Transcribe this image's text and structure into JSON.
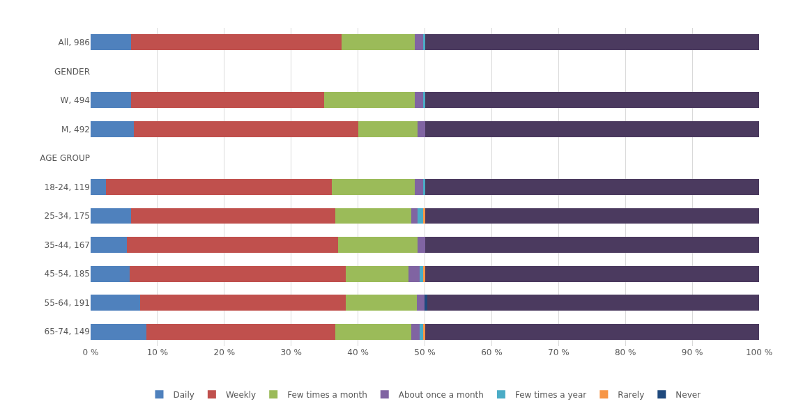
{
  "chart_data": {
    "type": "bar",
    "orientation": "horizontal",
    "stacked": true,
    "categories": [
      "All, 986",
      "GENDER",
      "W, 494",
      "M, 492",
      "AGE GROUP",
      "18-24, 119",
      "25-34, 175",
      "35-44, 167",
      "45-54, 185",
      "55-64, 191",
      "65-74, 149"
    ],
    "series": [
      {
        "name": "Daily",
        "color": "#4f81bd",
        "values": [
          6.0,
          null,
          6.0,
          6.5,
          null,
          2.3,
          6.0,
          5.4,
          5.8,
          7.4,
          8.3
        ]
      },
      {
        "name": "Weekly",
        "color": "#c0504d",
        "values": [
          31.5,
          null,
          28.9,
          33.5,
          null,
          33.8,
          30.6,
          31.6,
          32.4,
          30.8,
          28.3
        ]
      },
      {
        "name": "Few times a month",
        "color": "#9bbb59",
        "values": [
          11.0,
          null,
          13.6,
          8.9,
          null,
          12.4,
          11.4,
          11.9,
          9.4,
          10.6,
          11.4
        ]
      },
      {
        "name": "About once a month",
        "color": "#8064a2",
        "values": [
          1.2,
          null,
          1.2,
          1.2,
          null,
          1.2,
          0.9,
          1.2,
          1.6,
          1.1,
          1.2
        ]
      },
      {
        "name": "Few times a year",
        "color": "#4bacc6",
        "values": [
          0.4,
          null,
          0.4,
          null,
          null,
          0.4,
          0.8,
          null,
          0.5,
          null,
          0.5
        ]
      },
      {
        "name": "Rarely",
        "color": "#f79646",
        "values": [
          null,
          null,
          null,
          null,
          null,
          null,
          0.4,
          null,
          0.4,
          null,
          0.4
        ]
      },
      {
        "name": "Never",
        "color": "#1f497d",
        "values": [
          null,
          null,
          null,
          null,
          null,
          null,
          null,
          null,
          null,
          0.5,
          null
        ]
      },
      {
        "color": "#4b3a5f",
        "values": [
          49.9,
          null,
          49.9,
          49.9,
          null,
          49.9,
          49.9,
          49.9,
          49.9,
          49.6,
          49.9
        ]
      }
    ],
    "xlim": [
      0,
      100
    ],
    "xticks": [
      {
        "value": 0,
        "label": "0 %"
      },
      {
        "value": 10,
        "label": "10 %"
      },
      {
        "value": 20,
        "label": "20 %"
      },
      {
        "value": 30,
        "label": "30 %"
      },
      {
        "value": 40,
        "label": "40 %"
      },
      {
        "value": 50,
        "label": "50 %"
      },
      {
        "value": 60,
        "label": "60 %"
      },
      {
        "value": 70,
        "label": "70 %"
      },
      {
        "value": 80,
        "label": "80 %"
      },
      {
        "value": 90,
        "label": "90 %"
      },
      {
        "value": 100,
        "label": "100 %"
      }
    ],
    "grid": "x",
    "legend": "bottom"
  }
}
